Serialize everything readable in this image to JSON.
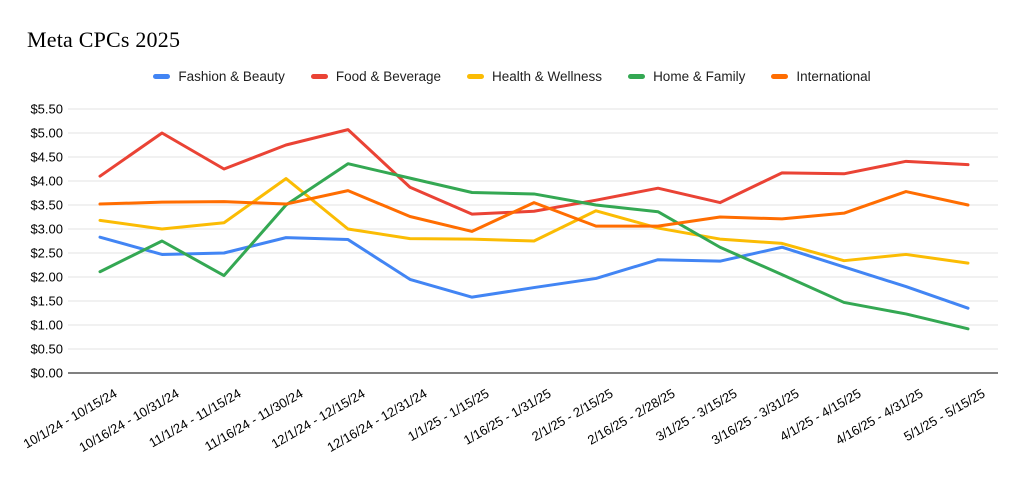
{
  "chart": {
    "title": "Meta CPCs 2025"
  },
  "y_axis": {
    "tick_labels": [
      "$5.50",
      "$5.00",
      "$4.50",
      "$4.00",
      "$3.50",
      "$3.00",
      "$2.50",
      "$2.00",
      "$1.50",
      "$1.00",
      "$0.50",
      "$0.00"
    ]
  },
  "chart_data": {
    "type": "line",
    "title": "Meta CPCs 2025",
    "categories": [
      "10/1/24 - 10/15/24",
      "10/16/24 - 10/31/24",
      "11/1/24 - 11/15/24",
      "11/16/24 - 11/30/24",
      "12/1/24 - 12/15/24",
      "12/16/24 - 12/31/24",
      "1/1/25 - 1/15/25",
      "1/16/25 - 1/31/25",
      "2/1/25 - 2/15/25",
      "2/16/25 - 2/28/25",
      "3/1/25 - 3/15/25",
      "3/16/25 - 3/31/25",
      "4/1/25 - 4/15/25",
      "4/16/25 - 4/31/25",
      "5/1/25 - 5/15/25"
    ],
    "series": [
      {
        "name": "Fashion & Beauty",
        "color": "#4285F4",
        "values": [
          2.83,
          2.47,
          2.5,
          2.82,
          2.78,
          1.95,
          1.58,
          1.78,
          1.97,
          2.36,
          2.33,
          2.62,
          2.21,
          1.8,
          1.35
        ]
      },
      {
        "name": "Food & Beverage",
        "color": "#EA4335",
        "values": [
          4.1,
          5.0,
          4.25,
          4.75,
          5.07,
          3.87,
          3.31,
          3.37,
          3.6,
          3.85,
          3.55,
          4.17,
          4.15,
          4.41,
          4.34
        ]
      },
      {
        "name": "Health & Wellness",
        "color": "#FBBC04",
        "values": [
          3.18,
          3.0,
          3.13,
          4.05,
          3.0,
          2.8,
          2.79,
          2.75,
          3.38,
          3.02,
          2.79,
          2.7,
          2.34,
          2.47,
          2.29
        ]
      },
      {
        "name": "Home & Family",
        "color": "#34A853",
        "values": [
          2.11,
          2.75,
          2.03,
          3.5,
          4.36,
          4.06,
          3.76,
          3.73,
          3.5,
          3.36,
          2.62,
          2.05,
          1.47,
          1.23,
          0.92
        ]
      },
      {
        "name": "International",
        "color": "#FF6D01",
        "values": [
          3.52,
          3.56,
          3.57,
          3.52,
          3.8,
          3.26,
          2.95,
          3.55,
          3.06,
          3.06,
          3.25,
          3.21,
          3.33,
          3.78,
          3.5
        ]
      }
    ],
    "ylim": [
      0,
      5.5
    ],
    "y_tick_step": 0.5,
    "grid": true,
    "legend_position": "top"
  },
  "colors": {
    "gridline": "#e3e3e3",
    "axis_line": "#000000",
    "tick_text": "#000000"
  }
}
